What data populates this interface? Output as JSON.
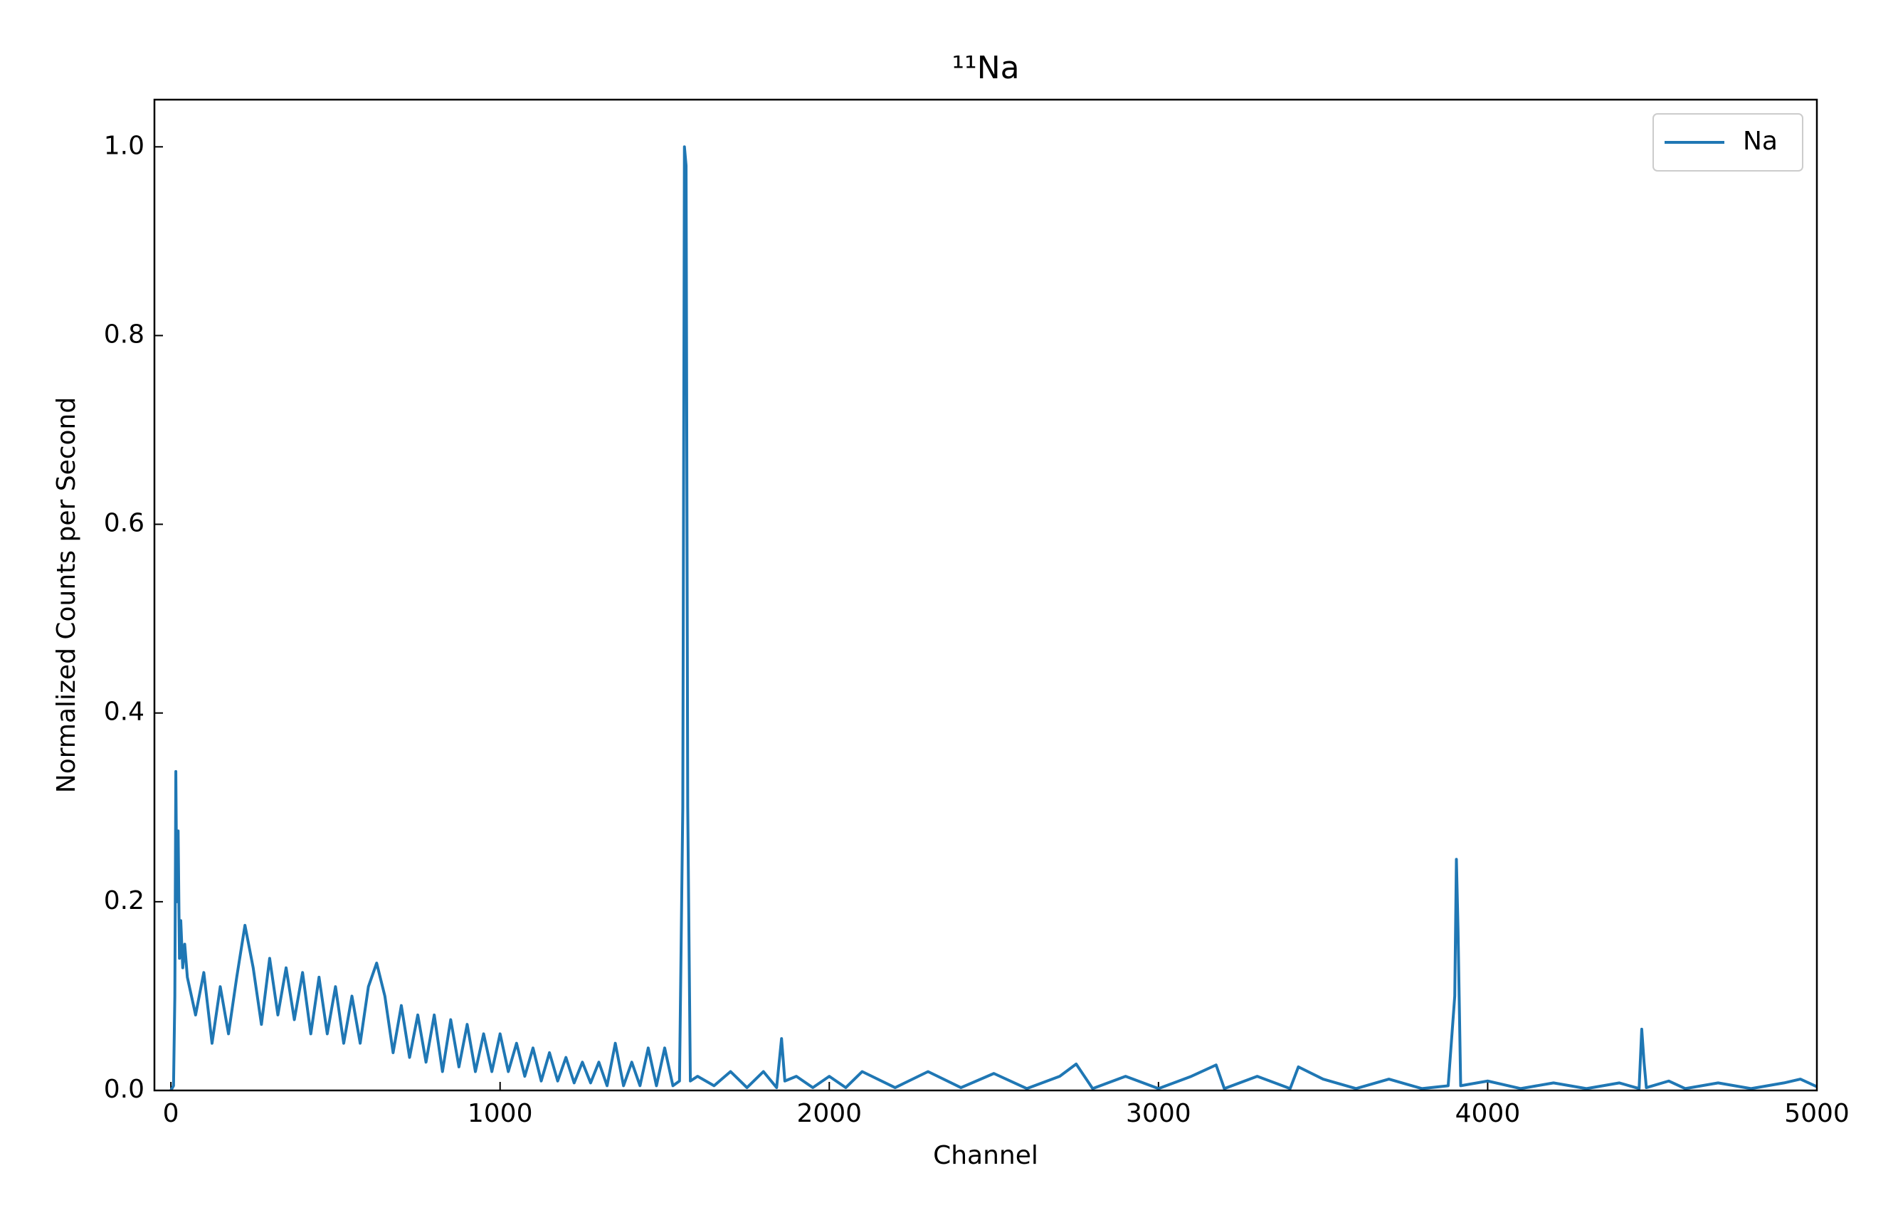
{
  "chart_data": {
    "type": "line",
    "title": "¹¹Na",
    "xlabel": "Channel",
    "ylabel": "Normalized Counts per Second",
    "xlim": [
      -50,
      5000
    ],
    "ylim": [
      0,
      1.05
    ],
    "xticks": [
      0,
      1000,
      2000,
      3000,
      4000,
      5000
    ],
    "yticks": [
      {
        "value": 0,
        "label": "0.0"
      },
      0.2,
      0.4,
      0.6,
      0.8,
      {
        "value": 1,
        "label": "1.0"
      }
    ],
    "legend": "upper right",
    "grid": false,
    "x": [
      0,
      8,
      12,
      15,
      18,
      22,
      26,
      30,
      36,
      42,
      50,
      75,
      100,
      125,
      150,
      175,
      200,
      225,
      250,
      275,
      300,
      325,
      350,
      375,
      400,
      425,
      450,
      475,
      500,
      525,
      550,
      575,
      600,
      625,
      650,
      675,
      700,
      725,
      750,
      775,
      800,
      825,
      850,
      875,
      900,
      925,
      950,
      975,
      1000,
      1025,
      1050,
      1075,
      1100,
      1125,
      1150,
      1175,
      1200,
      1225,
      1250,
      1275,
      1300,
      1325,
      1350,
      1375,
      1400,
      1425,
      1450,
      1475,
      1500,
      1525,
      1545,
      1555,
      1560,
      1565,
      1570,
      1578,
      1600,
      1650,
      1700,
      1750,
      1800,
      1840,
      1855,
      1865,
      1900,
      1950,
      2000,
      2050,
      2100,
      2200,
      2300,
      2400,
      2500,
      2600,
      2700,
      2750,
      2800,
      2900,
      3000,
      3100,
      3175,
      3200,
      3300,
      3400,
      3425,
      3500,
      3600,
      3700,
      3800,
      3880,
      3900,
      3905,
      3910,
      3918,
      4000,
      4100,
      4200,
      4300,
      4400,
      4460,
      4468,
      4475,
      4482,
      4550,
      4600,
      4700,
      4800,
      4900,
      4950,
      5000
    ],
    "series": [
      {
        "name": "Na",
        "color": "#1f77b4",
        "values": [
          0,
          0.005,
          0.1,
          0.338,
          0.2,
          0.275,
          0.14,
          0.18,
          0.13,
          0.155,
          0.12,
          0.08,
          0.125,
          0.05,
          0.11,
          0.06,
          0.12,
          0.175,
          0.13,
          0.07,
          0.14,
          0.08,
          0.13,
          0.075,
          0.125,
          0.06,
          0.12,
          0.06,
          0.11,
          0.05,
          0.1,
          0.05,
          0.11,
          0.135,
          0.1,
          0.04,
          0.09,
          0.035,
          0.08,
          0.03,
          0.08,
          0.02,
          0.075,
          0.025,
          0.07,
          0.02,
          0.06,
          0.02,
          0.06,
          0.02,
          0.05,
          0.015,
          0.045,
          0.01,
          0.04,
          0.01,
          0.035,
          0.008,
          0.03,
          0.008,
          0.03,
          0.005,
          0.05,
          0.005,
          0.03,
          0.005,
          0.045,
          0.005,
          0.045,
          0.005,
          0.01,
          0.3,
          1.0,
          0.98,
          0.3,
          0.01,
          0.015,
          0.005,
          0.02,
          0.003,
          0.02,
          0.003,
          0.055,
          0.01,
          0.015,
          0.003,
          0.015,
          0.003,
          0.02,
          0.003,
          0.02,
          0.003,
          0.018,
          0.002,
          0.015,
          0.028,
          0.002,
          0.015,
          0.002,
          0.015,
          0.027,
          0.002,
          0.015,
          0.002,
          0.025,
          0.012,
          0.002,
          0.012,
          0.002,
          0.005,
          0.1,
          0.245,
          0.17,
          0.005,
          0.01,
          0.002,
          0.008,
          0.002,
          0.008,
          0.002,
          0.065,
          0.03,
          0.003,
          0.01,
          0.002,
          0.008,
          0.002,
          0.008,
          0.012,
          0.004
        ]
      }
    ]
  }
}
